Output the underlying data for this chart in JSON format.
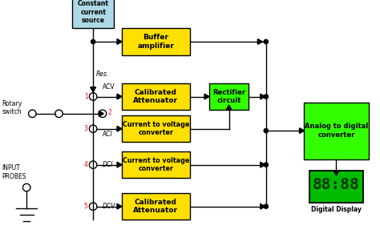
{
  "background_color": "#ffffff",
  "yellow_color": "#FFE000",
  "green_color": "#33FF00",
  "cyan_color": "#ADD8E6",
  "line_color": "#000000",
  "red_color": "#FF0000",
  "display_bg": "#00BB00",
  "display_text": "#003300",
  "figsize": [
    4.74,
    3.12
  ],
  "dpi": 100,
  "xlim": [
    0,
    10
  ],
  "ylim": [
    0,
    6.6
  ]
}
